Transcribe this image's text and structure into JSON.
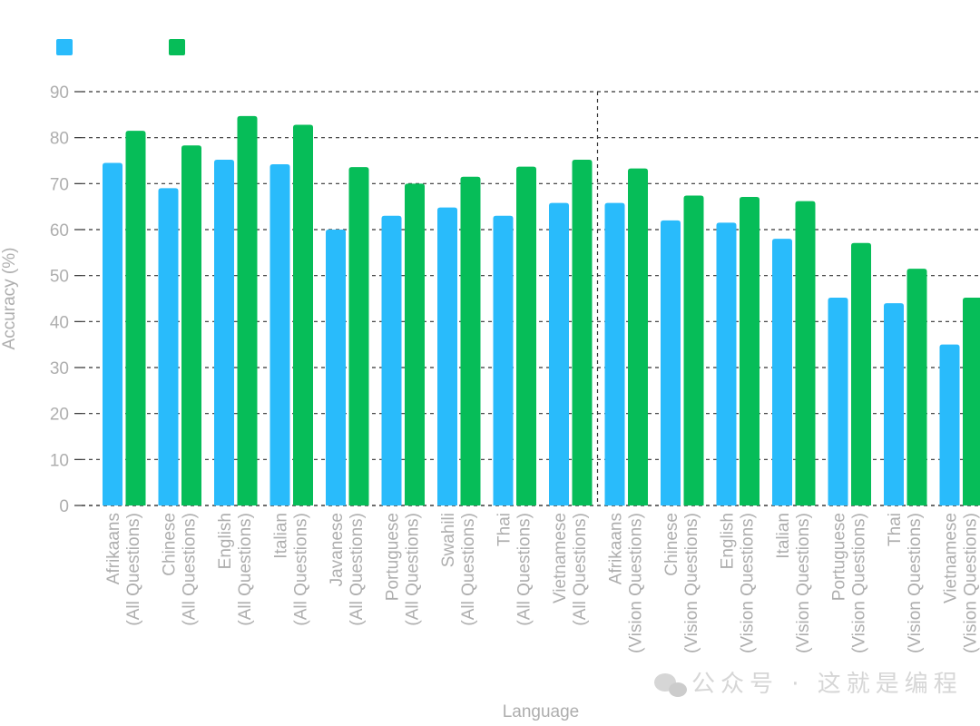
{
  "chart_data": {
    "type": "bar",
    "xlabel": "Language",
    "ylabel": "Accuracy (%)",
    "ylim": [
      0,
      90
    ],
    "yticks": [
      0,
      10,
      20,
      30,
      40,
      50,
      60,
      70,
      80,
      90
    ],
    "grid": true,
    "legend": "top-left",
    "categories": [
      [
        "Afrikaans",
        "(All Questions)"
      ],
      [
        "Chinese",
        "(All Questions)"
      ],
      [
        "English",
        "(All Questions)"
      ],
      [
        "Italian",
        "(All Questions)"
      ],
      [
        "Javanese",
        "(All Questions)"
      ],
      [
        "Portuguese",
        "(All Questions)"
      ],
      [
        "Swahili",
        "(All Questions)"
      ],
      [
        "Thai",
        "(All Questions)"
      ],
      [
        "Vietnamese",
        "(All Questions)"
      ],
      [
        "Afrikaans",
        "(Vision Questions)"
      ],
      [
        "Chinese",
        "(Vision Questions)"
      ],
      [
        "English",
        "(Vision Questions)"
      ],
      [
        "Italian",
        "(Vision Questions)"
      ],
      [
        "Portuguese",
        "(Vision Questions)"
      ],
      [
        "Thai",
        "(Vision Questions)"
      ],
      [
        "Vietnamese",
        "(Vision Questions)"
      ]
    ],
    "series": [
      {
        "color": "#29bbfb",
        "values": [
          74.5,
          69,
          75.2,
          74.2,
          60,
          63,
          64.8,
          63,
          65.8,
          65.8,
          62,
          61.5,
          58,
          45.2,
          44,
          35
        ]
      },
      {
        "color": "#06bd58",
        "values": [
          81.5,
          78.3,
          84.7,
          82.8,
          73.6,
          70,
          71.5,
          73.7,
          75.2,
          73.3,
          67.4,
          67.1,
          66.2,
          57.1,
          51.5,
          45.2
        ]
      }
    ],
    "group_divider_after_index": 8
  },
  "watermark": {
    "icon": "wechat-icon",
    "text": "公众号 · 这就是编程"
  }
}
